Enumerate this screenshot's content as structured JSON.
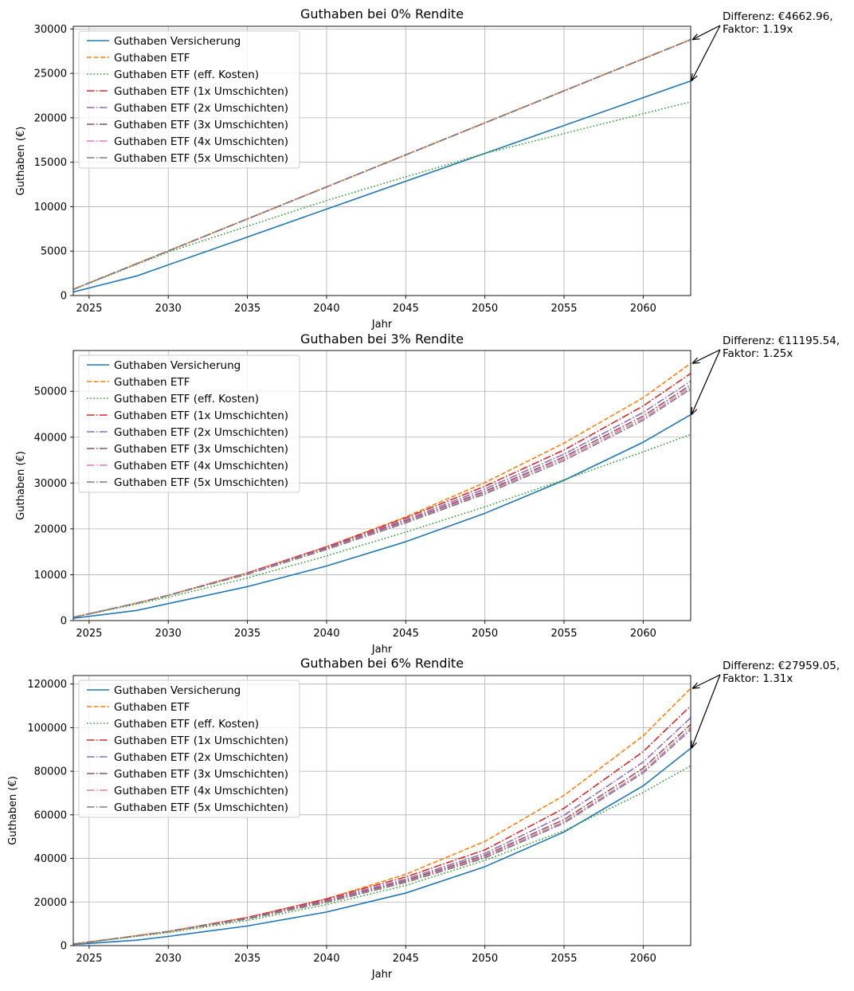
{
  "chart_data": [
    {
      "type": "line",
      "title": "Guthaben bei 0% Rendite",
      "xlabel": "Jahr",
      "ylabel": "Guthaben (€)",
      "xlim": [
        2024,
        2063
      ],
      "ylim": [
        0,
        30300
      ],
      "xticks": [
        "2025",
        "2030",
        "2035",
        "2040",
        "2045",
        "2050",
        "2055",
        "2060"
      ],
      "yticks": [
        "0",
        "5000",
        "10000",
        "15000",
        "20000",
        "25000",
        "30000"
      ],
      "legend_position": "upper-left",
      "annotation": {
        "line1": "Differenz: €4662.96,",
        "line2": "Faktor: 1.19x",
        "upper": 28800,
        "lower": 24150
      },
      "series": [
        {
          "name": "Guthaben Versicherung",
          "color": "#1f77b4",
          "dash": "solid",
          "x": [
            2024,
            2028,
            2063
          ],
          "y": [
            400,
            2200,
            24150
          ]
        },
        {
          "name": "Guthaben ETF",
          "color": "#ff7f0e",
          "dash": "dashed",
          "x": [
            2024,
            2063
          ],
          "y": [
            700,
            28800
          ]
        },
        {
          "name": "Guthaben ETF (eff. Kosten)",
          "color": "#2ca02c",
          "dash": "dotted",
          "x": [
            2024,
            2030,
            2040,
            2050,
            2063
          ],
          "y": [
            700,
            4900,
            10700,
            16000,
            21800
          ]
        },
        {
          "name": "Guthaben ETF (1x Umschichten)",
          "color": "#d62728",
          "dash": "dashdot",
          "x": [
            2024,
            2063
          ],
          "y": [
            700,
            28800
          ]
        },
        {
          "name": "Guthaben ETF (2x Umschichten)",
          "color": "#9467bd",
          "dash": "dashdot",
          "x": [
            2024,
            2063
          ],
          "y": [
            700,
            28800
          ]
        },
        {
          "name": "Guthaben ETF (3x Umschichten)",
          "color": "#8c564b",
          "dash": "dashdot",
          "x": [
            2024,
            2063
          ],
          "y": [
            700,
            28800
          ]
        },
        {
          "name": "Guthaben ETF (4x Umschichten)",
          "color": "#e377c2",
          "dash": "dashdot",
          "x": [
            2024,
            2063
          ],
          "y": [
            700,
            28800
          ]
        },
        {
          "name": "Guthaben ETF (5x Umschichten)",
          "color": "#7f7f7f",
          "dash": "dashdot",
          "x": [
            2024,
            2063
          ],
          "y": [
            700,
            28800
          ]
        }
      ]
    },
    {
      "type": "line",
      "title": "Guthaben bei 3% Rendite",
      "xlabel": "Jahr",
      "ylabel": "Guthaben (€)",
      "xlim": [
        2024,
        2063
      ],
      "ylim": [
        0,
        58900
      ],
      "xticks": [
        "2025",
        "2030",
        "2035",
        "2040",
        "2045",
        "2050",
        "2055",
        "2060"
      ],
      "yticks": [
        "0",
        "10000",
        "20000",
        "30000",
        "40000",
        "50000"
      ],
      "legend_position": "upper-left",
      "annotation": {
        "line1": "Differenz: €11195.54,",
        "line2": "Faktor: 1.25x",
        "upper": 56100,
        "lower": 44900
      },
      "series": [
        {
          "name": "Guthaben Versicherung",
          "color": "#1f77b4",
          "dash": "solid",
          "x": [
            2024,
            2028,
            2030,
            2035,
            2040,
            2045,
            2050,
            2055,
            2060,
            2063
          ],
          "y": [
            500,
            2200,
            3700,
            7400,
            11900,
            17200,
            23400,
            30600,
            38900,
            44900
          ]
        },
        {
          "name": "Guthaben ETF",
          "color": "#ff7f0e",
          "dash": "dashed",
          "x": [
            2024,
            2028,
            2030,
            2035,
            2040,
            2045,
            2050,
            2055,
            2060,
            2063
          ],
          "y": [
            700,
            3800,
            5500,
            10400,
            16100,
            22600,
            30100,
            38700,
            48600,
            56100
          ]
        },
        {
          "name": "Guthaben ETF (eff. Kosten)",
          "color": "#2ca02c",
          "dash": "dotted",
          "x": [
            2024,
            2028,
            2030,
            2035,
            2040,
            2045,
            2050,
            2055,
            2060,
            2063
          ],
          "y": [
            700,
            3600,
            5100,
            9300,
            14100,
            19300,
            24800,
            30700,
            36800,
            40600
          ]
        },
        {
          "name": "Guthaben ETF (1x Umschichten)",
          "color": "#d62728",
          "dash": "dashdot",
          "x": [
            2024,
            2028,
            2030,
            2035,
            2040,
            2045,
            2050,
            2055,
            2060,
            2063
          ],
          "y": [
            700,
            3800,
            5500,
            10400,
            16100,
            22400,
            29300,
            37200,
            46800,
            53900
          ]
        },
        {
          "name": "Guthaben ETF (2x Umschichten)",
          "color": "#9467bd",
          "dash": "dashdot",
          "x": [
            2024,
            2028,
            2030,
            2035,
            2040,
            2045,
            2050,
            2055,
            2060,
            2063
          ],
          "y": [
            700,
            3800,
            5500,
            10300,
            15900,
            22000,
            28700,
            36300,
            45400,
            52200
          ]
        },
        {
          "name": "Guthaben ETF (3x Umschichten)",
          "color": "#8c564b",
          "dash": "dashdot",
          "x": [
            2024,
            2028,
            2030,
            2035,
            2040,
            2045,
            2050,
            2055,
            2060,
            2063
          ],
          "y": [
            700,
            3800,
            5500,
            10200,
            15700,
            21700,
            28200,
            35700,
            44600,
            51400
          ]
        },
        {
          "name": "Guthaben ETF (4x Umschichten)",
          "color": "#e377c2",
          "dash": "dashdot",
          "x": [
            2024,
            2028,
            2030,
            2035,
            2040,
            2045,
            2050,
            2055,
            2060,
            2063
          ],
          "y": [
            700,
            3800,
            5500,
            10200,
            15600,
            21500,
            27900,
            35300,
            44100,
            50900
          ]
        },
        {
          "name": "Guthaben ETF (5x Umschichten)",
          "color": "#7f7f7f",
          "dash": "dashdot",
          "x": [
            2024,
            2028,
            2030,
            2035,
            2040,
            2045,
            2050,
            2055,
            2060,
            2063
          ],
          "y": [
            700,
            3800,
            5500,
            10100,
            15500,
            21300,
            27600,
            34900,
            43700,
            50500
          ]
        }
      ]
    },
    {
      "type": "line",
      "title": "Guthaben bei 6% Rendite",
      "xlabel": "Jahr",
      "ylabel": "Guthaben (€)",
      "xlim": [
        2024,
        2063
      ],
      "ylim": [
        0,
        123900
      ],
      "xticks": [
        "2025",
        "2030",
        "2035",
        "2040",
        "2045",
        "2050",
        "2055",
        "2060"
      ],
      "yticks": [
        "0",
        "20000",
        "40000",
        "60000",
        "80000",
        "100000",
        "120000"
      ],
      "legend_position": "upper-left",
      "annotation": {
        "line1": "Differenz: €27959.05,",
        "line2": "Faktor: 1.31x",
        "upper": 118000,
        "lower": 90500
      },
      "series": [
        {
          "name": "Guthaben Versicherung",
          "color": "#1f77b4",
          "dash": "solid",
          "x": [
            2024,
            2028,
            2030,
            2035,
            2040,
            2045,
            2050,
            2055,
            2060,
            2063
          ],
          "y": [
            500,
            2500,
            4200,
            9000,
            15400,
            24100,
            36200,
            52100,
            73300,
            90500
          ]
        },
        {
          "name": "Guthaben ETF",
          "color": "#ff7f0e",
          "dash": "dashed",
          "x": [
            2024,
            2028,
            2030,
            2035,
            2040,
            2045,
            2050,
            2055,
            2060,
            2063
          ],
          "y": [
            700,
            4500,
            6500,
            12900,
            21500,
            32700,
            47800,
            68900,
            96200,
            118000
          ]
        },
        {
          "name": "Guthaben ETF (eff. Kosten)",
          "color": "#2ca02c",
          "dash": "dotted",
          "x": [
            2024,
            2028,
            2030,
            2035,
            2040,
            2045,
            2050,
            2055,
            2060,
            2063
          ],
          "y": [
            700,
            4200,
            6000,
            11500,
            18800,
            27600,
            39100,
            52700,
            70300,
            82500
          ]
        },
        {
          "name": "Guthaben ETF (1x Umschichten)",
          "color": "#d62728",
          "dash": "dashdot",
          "x": [
            2024,
            2028,
            2030,
            2035,
            2040,
            2045,
            2050,
            2055,
            2060,
            2063
          ],
          "y": [
            700,
            4500,
            6500,
            12900,
            21400,
            31500,
            43900,
            63000,
            89000,
            110000
          ]
        },
        {
          "name": "Guthaben ETF (2x Umschichten)",
          "color": "#9467bd",
          "dash": "dashdot",
          "x": [
            2024,
            2028,
            2030,
            2035,
            2040,
            2045,
            2050,
            2055,
            2060,
            2063
          ],
          "y": [
            700,
            4500,
            6500,
            12600,
            20800,
            30500,
            42300,
            59800,
            84200,
            104500
          ]
        },
        {
          "name": "Guthaben ETF (3x Umschichten)",
          "color": "#8c564b",
          "dash": "dashdot",
          "x": [
            2024,
            2028,
            2030,
            2035,
            2040,
            2045,
            2050,
            2055,
            2060,
            2063
          ],
          "y": [
            700,
            4500,
            6400,
            12400,
            20300,
            29800,
            41400,
            57800,
            81400,
            101500
          ]
        },
        {
          "name": "Guthaben ETF (4x Umschichten)",
          "color": "#e377c2",
          "dash": "dashdot",
          "x": [
            2024,
            2028,
            2030,
            2035,
            2040,
            2045,
            2050,
            2055,
            2060,
            2063
          ],
          "y": [
            700,
            4500,
            6400,
            12300,
            20000,
            29300,
            40700,
            56800,
            80000,
            100000
          ]
        },
        {
          "name": "Guthaben ETF (5x Umschichten)",
          "color": "#7f7f7f",
          "dash": "dashdot",
          "x": [
            2024,
            2028,
            2030,
            2035,
            2040,
            2045,
            2050,
            2055,
            2060,
            2063
          ],
          "y": [
            700,
            4500,
            6400,
            12200,
            19800,
            29000,
            40200,
            56200,
            79200,
            99000
          ]
        }
      ]
    }
  ]
}
